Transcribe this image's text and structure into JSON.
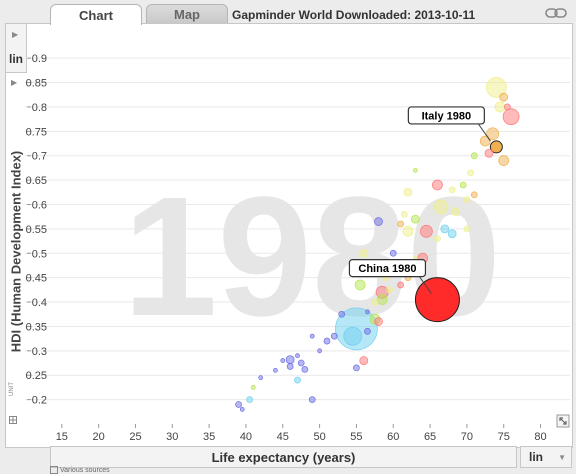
{
  "tabs": [
    {
      "label": "Chart",
      "active": true
    },
    {
      "label": "Map",
      "active": false
    }
  ],
  "title": "Gapminder World Downloaded: 2013-10-11",
  "y_scale": "lin",
  "x_scale": "lin",
  "y_unit": "UNIT",
  "sources": "Various sources",
  "year": "1980",
  "chart_data": {
    "type": "scatter",
    "xlabel": "Life expectancy (years)",
    "ylabel": "HDI (Human Development Index)",
    "xlim": [
      10,
      84
    ],
    "ylim": [
      0.15,
      0.97
    ],
    "xticks": [
      15,
      20,
      25,
      30,
      35,
      40,
      45,
      50,
      55,
      60,
      65,
      70,
      75,
      80
    ],
    "yticks": [
      0.2,
      0.25,
      0.3,
      0.35,
      0.4,
      0.45,
      0.5,
      0.55,
      0.6,
      0.65,
      0.7,
      0.75,
      0.8,
      0.85,
      0.9
    ],
    "annotations": [
      {
        "text": "China 1980",
        "x": 66,
        "y": 0.405
      },
      {
        "text": "Italy 1980",
        "x": 74,
        "y": 0.718
      }
    ],
    "colors": {
      "asia": "#6e6ee6",
      "sasia": "#6ed0f0",
      "china": "#ff2a2a",
      "europe": "#f0b050",
      "americas": "#b4e650",
      "africa": "#f0f088",
      "mideast": "#ff7878"
    },
    "points": [
      {
        "x": 66,
        "y": 0.405,
        "r": 22,
        "c": "china"
      },
      {
        "x": 55,
        "y": 0.345,
        "r": 21,
        "c": "sasia"
      },
      {
        "x": 54.5,
        "y": 0.33,
        "r": 9,
        "c": "sasia"
      },
      {
        "x": 74,
        "y": 0.718,
        "r": 6,
        "c": "europe",
        "highlight": true
      },
      {
        "x": 74,
        "y": 0.84,
        "r": 10,
        "c": "africa"
      },
      {
        "x": 76,
        "y": 0.78,
        "r": 8,
        "c": "mideast"
      },
      {
        "x": 74.5,
        "y": 0.8,
        "r": 5,
        "c": "africa"
      },
      {
        "x": 75,
        "y": 0.82,
        "r": 4,
        "c": "europe"
      },
      {
        "x": 75.5,
        "y": 0.8,
        "r": 3,
        "c": "mideast"
      },
      {
        "x": 73.5,
        "y": 0.745,
        "r": 6,
        "c": "europe"
      },
      {
        "x": 72.5,
        "y": 0.73,
        "r": 5,
        "c": "europe"
      },
      {
        "x": 73,
        "y": 0.705,
        "r": 4,
        "c": "mideast"
      },
      {
        "x": 75,
        "y": 0.69,
        "r": 5,
        "c": "europe"
      },
      {
        "x": 71,
        "y": 0.7,
        "r": 3,
        "c": "americas"
      },
      {
        "x": 70.5,
        "y": 0.665,
        "r": 3,
        "c": "africa"
      },
      {
        "x": 69.5,
        "y": 0.64,
        "r": 3,
        "c": "americas"
      },
      {
        "x": 71,
        "y": 0.62,
        "r": 3,
        "c": "europe"
      },
      {
        "x": 70,
        "y": 0.61,
        "r": 3,
        "c": "africa"
      },
      {
        "x": 68,
        "y": 0.63,
        "r": 3,
        "c": "africa"
      },
      {
        "x": 66,
        "y": 0.64,
        "r": 5,
        "c": "mideast"
      },
      {
        "x": 63,
        "y": 0.67,
        "r": 2,
        "c": "americas"
      },
      {
        "x": 62,
        "y": 0.625,
        "r": 4,
        "c": "africa"
      },
      {
        "x": 66.5,
        "y": 0.595,
        "r": 7,
        "c": "africa"
      },
      {
        "x": 68.5,
        "y": 0.585,
        "r": 4,
        "c": "africa"
      },
      {
        "x": 63,
        "y": 0.57,
        "r": 4,
        "c": "americas"
      },
      {
        "x": 61.5,
        "y": 0.58,
        "r": 3,
        "c": "africa"
      },
      {
        "x": 61,
        "y": 0.56,
        "r": 3,
        "c": "europe"
      },
      {
        "x": 64.5,
        "y": 0.545,
        "r": 6,
        "c": "mideast"
      },
      {
        "x": 62,
        "y": 0.545,
        "r": 5,
        "c": "africa"
      },
      {
        "x": 67,
        "y": 0.55,
        "r": 4,
        "c": "sasia"
      },
      {
        "x": 68,
        "y": 0.54,
        "r": 4,
        "c": "sasia"
      },
      {
        "x": 66,
        "y": 0.53,
        "r": 3,
        "c": "africa"
      },
      {
        "x": 70,
        "y": 0.55,
        "r": 3,
        "c": "africa"
      },
      {
        "x": 58,
        "y": 0.565,
        "r": 4,
        "c": "asia"
      },
      {
        "x": 60,
        "y": 0.5,
        "r": 3,
        "c": "asia"
      },
      {
        "x": 63,
        "y": 0.49,
        "r": 2,
        "c": "africa"
      },
      {
        "x": 64,
        "y": 0.49,
        "r": 5,
        "c": "mideast"
      },
      {
        "x": 56,
        "y": 0.5,
        "r": 4,
        "c": "africa"
      },
      {
        "x": 57.5,
        "y": 0.47,
        "r": 3,
        "c": "americas"
      },
      {
        "x": 58.5,
        "y": 0.465,
        "r": 5,
        "c": "americas"
      },
      {
        "x": 60,
        "y": 0.46,
        "r": 3,
        "c": "africa"
      },
      {
        "x": 61.5,
        "y": 0.46,
        "r": 3,
        "c": "africa"
      },
      {
        "x": 59,
        "y": 0.45,
        "r": 3,
        "c": "africa"
      },
      {
        "x": 62,
        "y": 0.45,
        "r": 3,
        "c": "europe"
      },
      {
        "x": 61,
        "y": 0.435,
        "r": 3,
        "c": "mideast"
      },
      {
        "x": 59.5,
        "y": 0.425,
        "r": 3,
        "c": "africa"
      },
      {
        "x": 55.5,
        "y": 0.435,
        "r": 5,
        "c": "americas"
      },
      {
        "x": 58.5,
        "y": 0.42,
        "r": 6,
        "c": "mideast"
      },
      {
        "x": 58.5,
        "y": 0.405,
        "r": 5,
        "c": "americas"
      },
      {
        "x": 57.5,
        "y": 0.4,
        "r": 3,
        "c": "africa"
      },
      {
        "x": 56.5,
        "y": 0.38,
        "r": 2,
        "c": "asia"
      },
      {
        "x": 57.5,
        "y": 0.365,
        "r": 5,
        "c": "americas"
      },
      {
        "x": 58,
        "y": 0.36,
        "r": 4,
        "c": "mideast"
      },
      {
        "x": 56.5,
        "y": 0.34,
        "r": 3,
        "c": "asia"
      },
      {
        "x": 53,
        "y": 0.375,
        "r": 3,
        "c": "asia"
      },
      {
        "x": 52,
        "y": 0.33,
        "r": 3,
        "c": "asia"
      },
      {
        "x": 51,
        "y": 0.32,
        "r": 3,
        "c": "asia"
      },
      {
        "x": 49,
        "y": 0.33,
        "r": 2,
        "c": "asia"
      },
      {
        "x": 50,
        "y": 0.3,
        "r": 2,
        "c": "asia"
      },
      {
        "x": 47,
        "y": 0.29,
        "r": 2,
        "c": "asia"
      },
      {
        "x": 46,
        "y": 0.282,
        "r": 4,
        "c": "asia"
      },
      {
        "x": 47.5,
        "y": 0.275,
        "r": 3,
        "c": "asia"
      },
      {
        "x": 48,
        "y": 0.262,
        "r": 3,
        "c": "asia"
      },
      {
        "x": 45,
        "y": 0.28,
        "r": 2,
        "c": "asia"
      },
      {
        "x": 46,
        "y": 0.268,
        "r": 3,
        "c": "asia"
      },
      {
        "x": 56,
        "y": 0.28,
        "r": 4,
        "c": "mideast"
      },
      {
        "x": 55,
        "y": 0.265,
        "r": 3,
        "c": "asia"
      },
      {
        "x": 47,
        "y": 0.24,
        "r": 3,
        "c": "sasia"
      },
      {
        "x": 42,
        "y": 0.245,
        "r": 2,
        "c": "asia"
      },
      {
        "x": 41,
        "y": 0.225,
        "r": 2,
        "c": "americas"
      },
      {
        "x": 40.5,
        "y": 0.2,
        "r": 3,
        "c": "sasia"
      },
      {
        "x": 39.5,
        "y": 0.18,
        "r": 2,
        "c": "asia"
      },
      {
        "x": 39,
        "y": 0.19,
        "r": 3,
        "c": "asia"
      },
      {
        "x": 44,
        "y": 0.26,
        "r": 2,
        "c": "asia"
      },
      {
        "x": 49,
        "y": 0.2,
        "r": 3,
        "c": "asia"
      }
    ]
  }
}
